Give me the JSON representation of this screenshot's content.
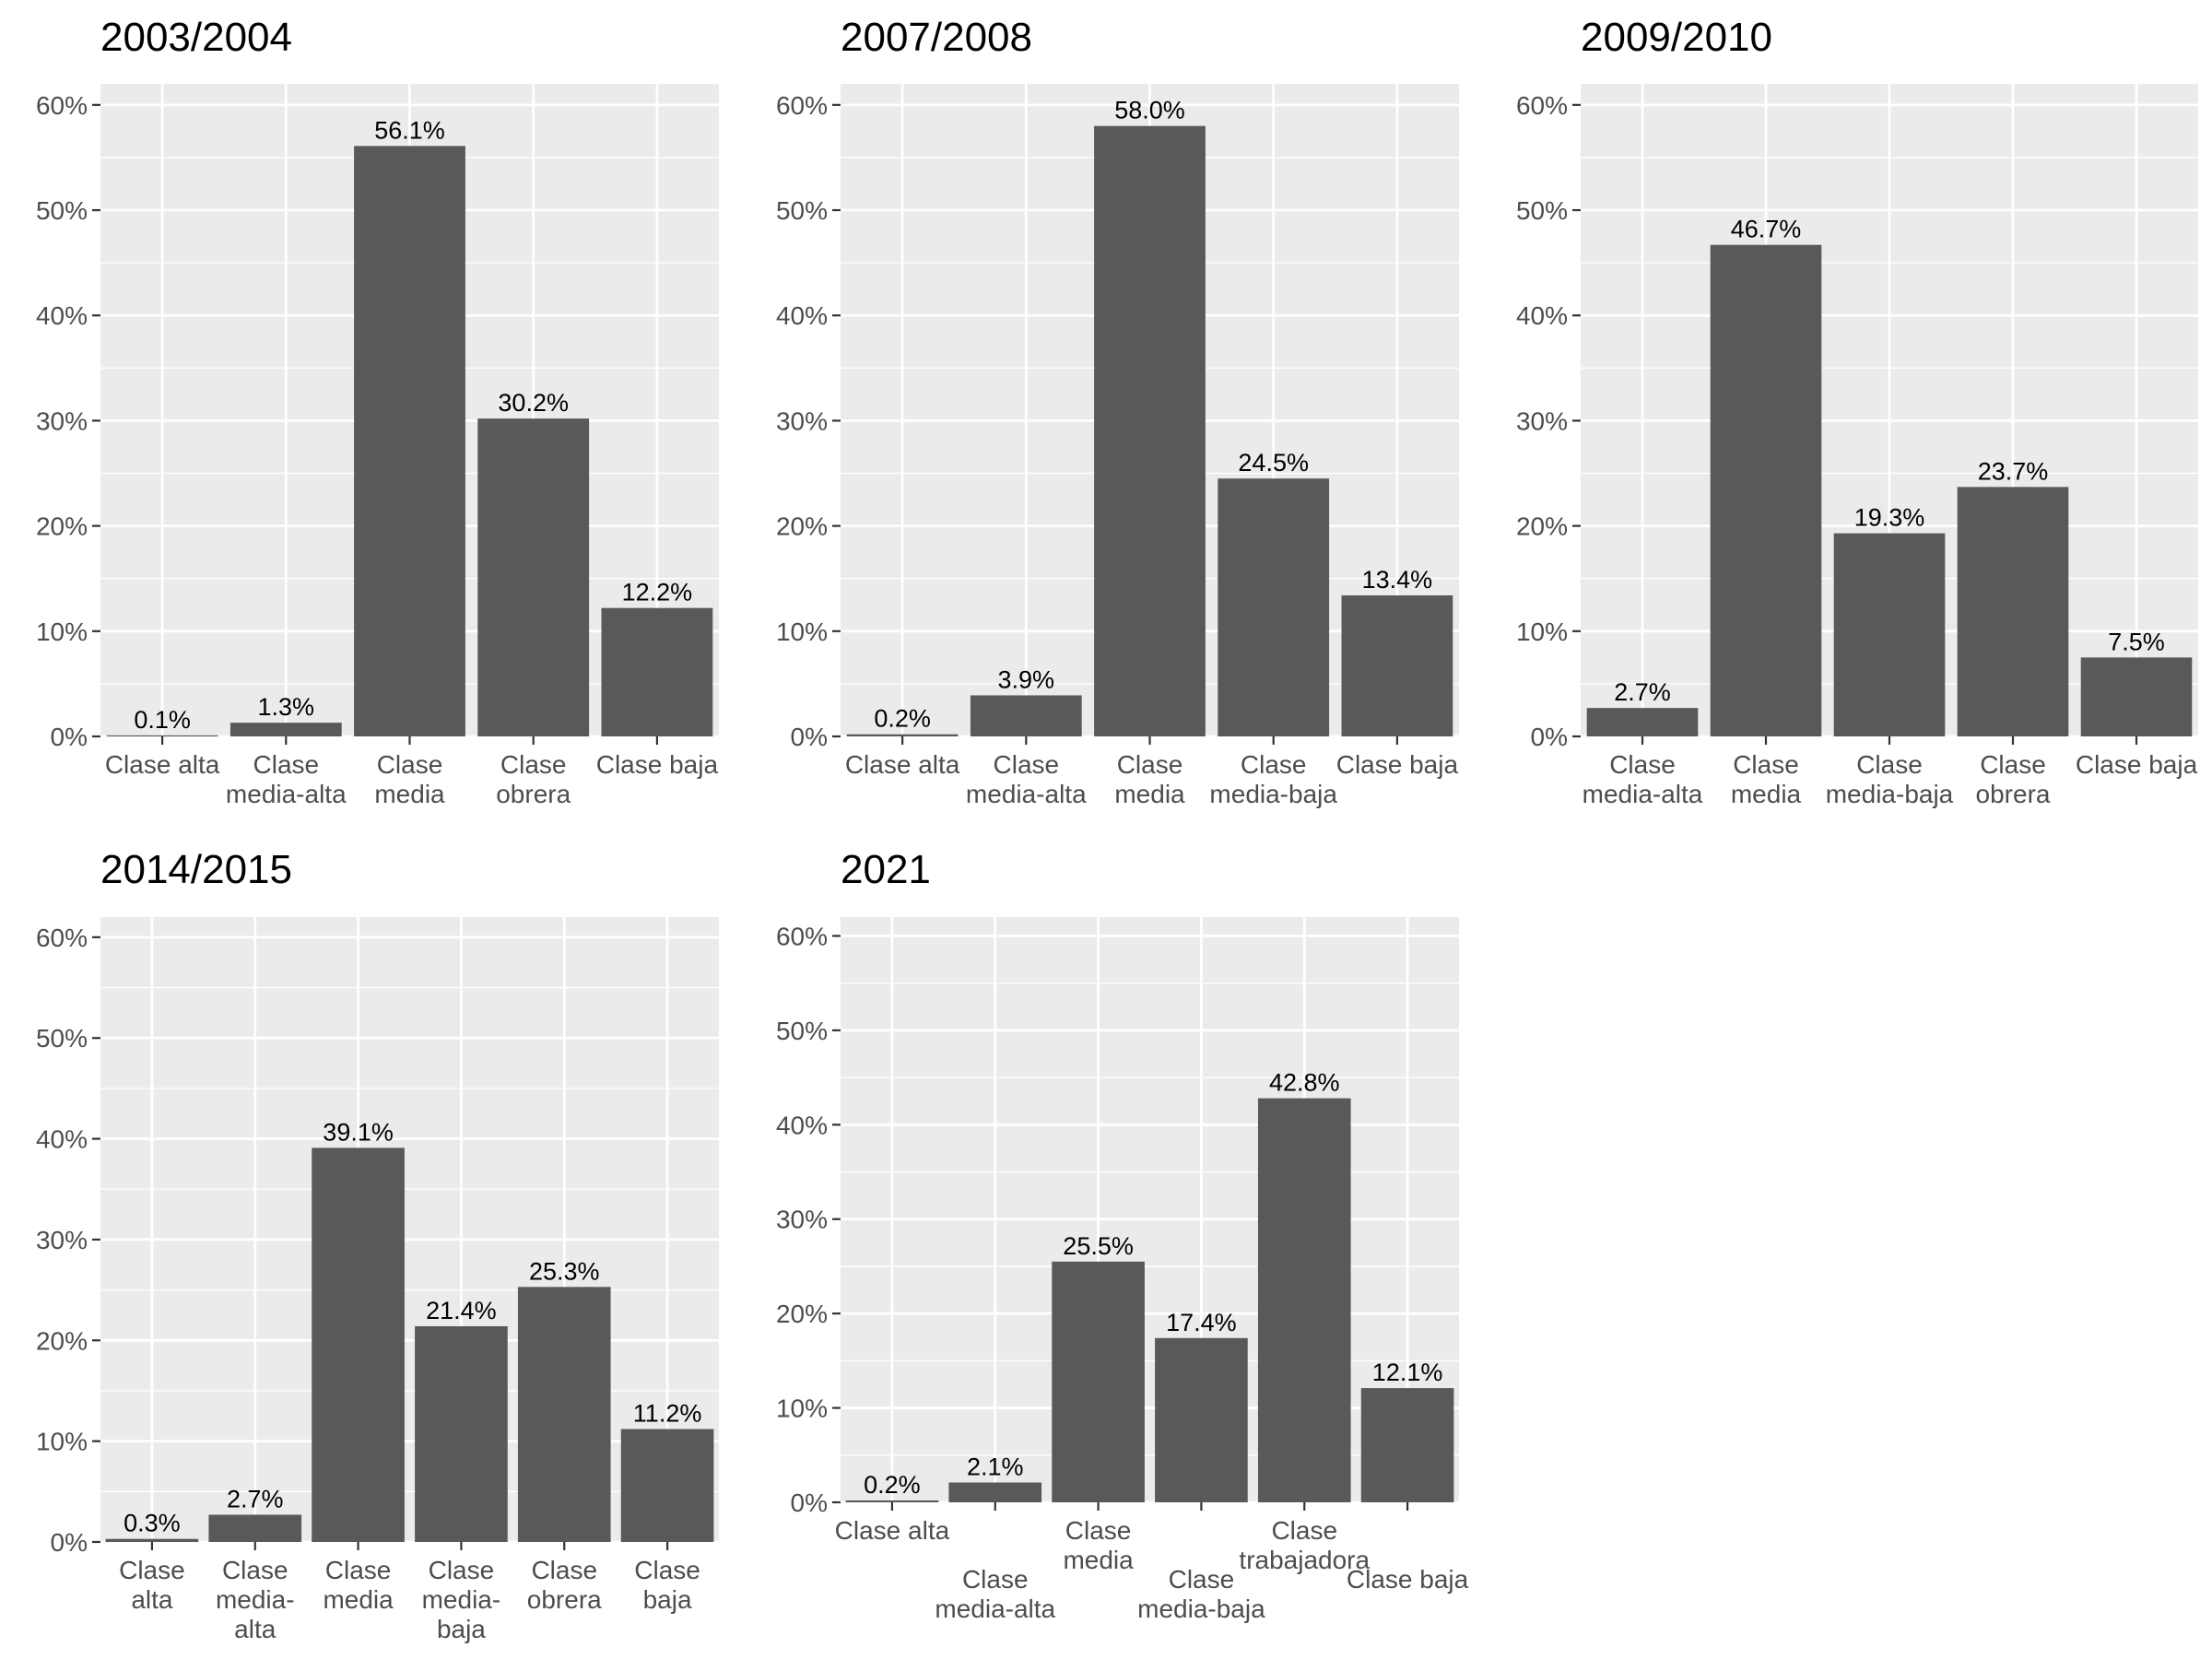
{
  "chart_data": [
    {
      "type": "bar",
      "title": "2003/2004",
      "categories": [
        "Clase alta",
        "Clase\nmedia-alta",
        "Clase\nmedia",
        "Clase\nobrera",
        "Clase baja"
      ],
      "values": [
        0.1,
        1.3,
        56.1,
        30.2,
        12.2
      ],
      "value_labels": [
        "0.1%",
        "1.3%",
        "56.1%",
        "30.2%",
        "12.2%"
      ],
      "ylim": [
        0,
        62
      ],
      "yticks": [
        "0%",
        "10%",
        "20%",
        "30%",
        "40%",
        "50%",
        "60%"
      ],
      "grid": true,
      "bar_color": "#595959",
      "panel_bg": "#ebebeb"
    },
    {
      "type": "bar",
      "title": "2007/2008",
      "categories": [
        "Clase alta",
        "Clase\nmedia-alta",
        "Clase\nmedia",
        "Clase\nmedia-baja",
        "Clase baja"
      ],
      "values": [
        0.2,
        3.9,
        58.0,
        24.5,
        13.4
      ],
      "value_labels": [
        "0.2%",
        "3.9%",
        "58.0%",
        "24.5%",
        "13.4%"
      ],
      "ylim": [
        0,
        62
      ],
      "yticks": [
        "0%",
        "10%",
        "20%",
        "30%",
        "40%",
        "50%",
        "60%"
      ],
      "grid": true,
      "bar_color": "#595959",
      "panel_bg": "#ebebeb"
    },
    {
      "type": "bar",
      "title": "2009/2010",
      "categories": [
        "Clase\nmedia-alta",
        "Clase\nmedia",
        "Clase\nmedia-baja",
        "Clase\nobrera",
        "Clase baja"
      ],
      "values": [
        2.7,
        46.7,
        19.3,
        23.7,
        7.5
      ],
      "value_labels": [
        "2.7%",
        "46.7%",
        "19.3%",
        "23.7%",
        "7.5%"
      ],
      "ylim": [
        0,
        62
      ],
      "yticks": [
        "0%",
        "10%",
        "20%",
        "30%",
        "40%",
        "50%",
        "60%"
      ],
      "grid": true,
      "bar_color": "#595959",
      "panel_bg": "#ebebeb"
    },
    {
      "type": "bar",
      "title": "2014/2015",
      "categories": [
        "Clase\nalta",
        "Clase\nmedia-\nalta",
        "Clase\nmedia",
        "Clase\nmedia-\nbaja",
        "Clase\nobrera",
        "Clase\nbaja"
      ],
      "values": [
        0.3,
        2.7,
        39.1,
        21.4,
        25.3,
        11.2
      ],
      "value_labels": [
        "0.3%",
        "2.7%",
        "39.1%",
        "21.4%",
        "25.3%",
        "11.2%"
      ],
      "ylim": [
        0,
        62
      ],
      "yticks": [
        "0%",
        "10%",
        "20%",
        "30%",
        "40%",
        "50%",
        "60%"
      ],
      "grid": true,
      "bar_color": "#595959",
      "panel_bg": "#ebebeb"
    },
    {
      "type": "bar",
      "title": "2021",
      "categories": [
        "Clase alta",
        "Clase\nmedia-alta",
        "Clase\nmedia",
        "Clase\nmedia-baja",
        "Clase\ntrabajadora",
        "Clase baja"
      ],
      "values": [
        0.2,
        2.1,
        25.5,
        17.4,
        42.8,
        12.1
      ],
      "value_labels": [
        "0.2%",
        "2.1%",
        "25.5%",
        "17.4%",
        "42.8%",
        "12.1%"
      ],
      "ylim": [
        0,
        62
      ],
      "yticks": [
        "0%",
        "10%",
        "20%",
        "30%",
        "40%",
        "50%",
        "60%"
      ],
      "grid": true,
      "bar_color": "#595959",
      "panel_bg": "#ebebeb",
      "x_label_layout": "staggered"
    }
  ]
}
